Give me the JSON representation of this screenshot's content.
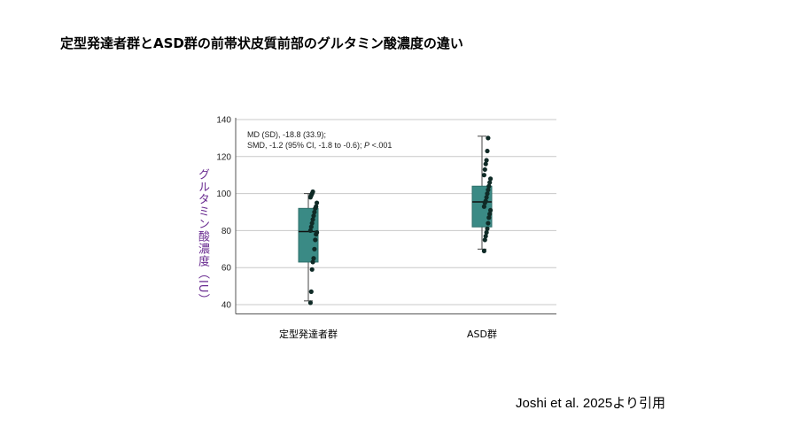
{
  "page": {
    "title": "定型発達者群とASD群の前帯状皮質前部のグルタミン酸濃度の違い",
    "citation": "Joshi et al. 2025より引用"
  },
  "chart_data": {
    "type": "box",
    "ylabel": "グルタミン酸濃度（IU）",
    "ylim": [
      35,
      140
    ],
    "yticks": [
      40,
      60,
      80,
      100,
      120,
      140
    ],
    "grid": true,
    "annotation": {
      "line1": "MD (SD), -18.8 (33.9);",
      "line2_pre": "SMD, -1.2 (95% CI, -1.8 to -0.6); ",
      "line2_p": "P",
      "line2_post": " <.001"
    },
    "box_color": "#3a8a85",
    "point_color": "#0f2a26",
    "categories": [
      "定型発達者群",
      "ASD群"
    ],
    "groups": [
      {
        "name": "定型発達者群",
        "whisker_low": 42,
        "q1": 63,
        "median": 79.5,
        "q3": 92,
        "whisker_high": 100,
        "points": [
          41,
          47,
          59,
          63,
          65,
          70,
          75,
          78,
          79,
          80,
          82,
          84,
          86,
          88,
          90,
          92,
          93,
          95,
          98,
          99,
          100,
          101
        ]
      },
      {
        "name": "ASD群",
        "whisker_low": 70,
        "q1": 82,
        "median": 95.5,
        "q3": 104,
        "whisker_high": 131,
        "points": [
          69,
          75,
          77,
          79,
          81,
          84,
          87,
          89,
          91,
          93,
          95,
          96,
          98,
          100,
          102,
          104,
          106,
          108,
          110,
          113,
          116,
          118,
          123,
          130
        ]
      }
    ]
  }
}
